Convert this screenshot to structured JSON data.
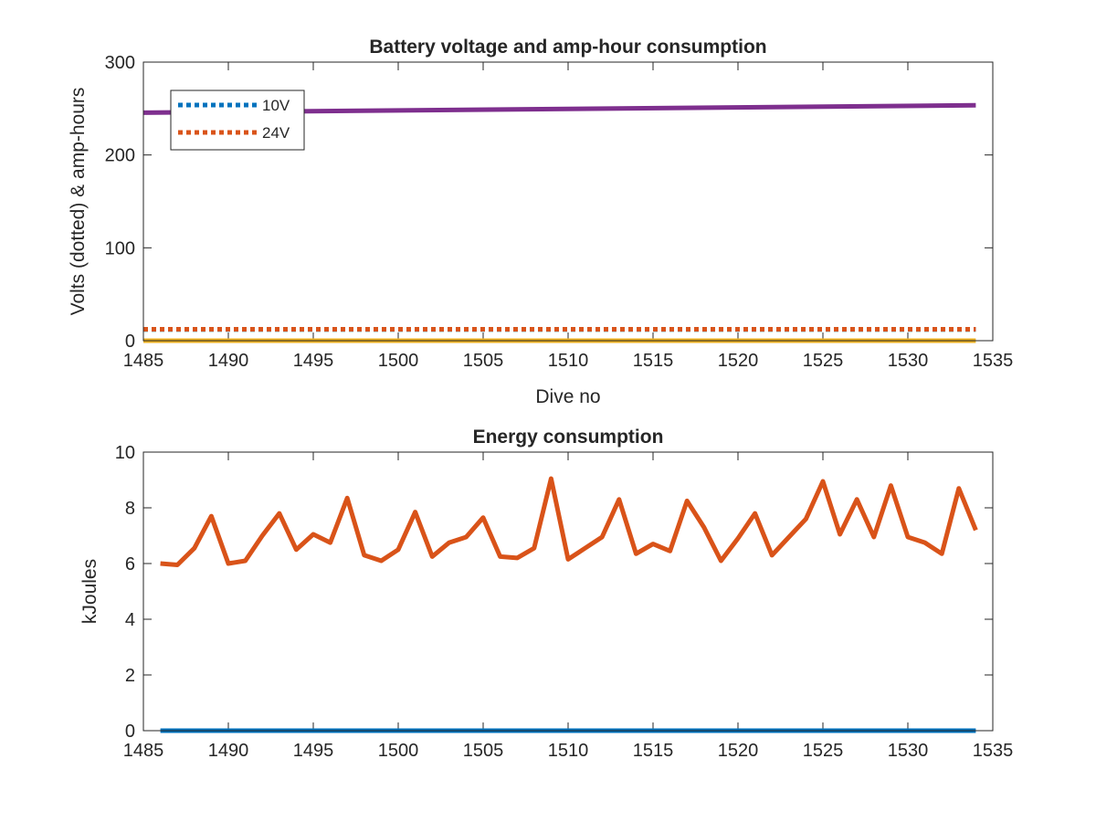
{
  "chart_data": [
    {
      "type": "line",
      "title": "Battery voltage and amp-hour consumption",
      "xlabel": "Dive no",
      "ylabel": "Volts (dotted) & amp-hours",
      "xlim": [
        1485,
        1535
      ],
      "ylim": [
        0,
        300
      ],
      "xticks": [
        "1485",
        "1490",
        "1495",
        "1500",
        "1505",
        "1510",
        "1515",
        "1520",
        "1525",
        "1530",
        "1535"
      ],
      "yticks": [
        "0",
        "100",
        "200",
        "300"
      ],
      "legend_position": "top-left",
      "colors": {
        "10V": "#0072BD",
        "24V": "#D95319",
        "amp_hours": "#7E2F8E",
        "amp_hours_2": "#EDB120"
      },
      "series": [
        {
          "name": "10V",
          "style": "dotted",
          "color": "#0072BD",
          "x": [
            1485,
            1534
          ],
          "y": [
            12,
            12
          ]
        },
        {
          "name": "24V",
          "style": "dotted",
          "color": "#D95319",
          "x": [
            1485,
            1534
          ],
          "y": [
            12.3,
            12.3
          ]
        },
        {
          "style": "solid",
          "color": "#7E2F8E",
          "x": [
            1485,
            1534
          ],
          "y": [
            245.5,
            253.5
          ]
        },
        {
          "style": "solid",
          "color": "#EDB120",
          "x": [
            1485,
            1534
          ],
          "y": [
            0,
            0
          ]
        }
      ]
    },
    {
      "type": "line",
      "title": "Energy consumption",
      "xlabel": "",
      "ylabel": "kJoules",
      "xlim": [
        1485,
        1535
      ],
      "ylim": [
        0,
        10
      ],
      "xticks": [
        "1485",
        "1490",
        "1495",
        "1500",
        "1505",
        "1510",
        "1515",
        "1520",
        "1525",
        "1530",
        "1535"
      ],
      "yticks": [
        "0",
        "2",
        "4",
        "6",
        "8",
        "10"
      ],
      "series": [
        {
          "style": "solid",
          "color": "#D95319",
          "x": [
            1486,
            1487,
            1488,
            1489,
            1490,
            1491,
            1492,
            1493,
            1494,
            1495,
            1496,
            1497,
            1498,
            1499,
            1500,
            1501,
            1502,
            1503,
            1504,
            1505,
            1506,
            1507,
            1508,
            1509,
            1510,
            1511,
            1512,
            1513,
            1514,
            1515,
            1516,
            1517,
            1518,
            1519,
            1520,
            1521,
            1522,
            1523,
            1524,
            1525,
            1526,
            1527,
            1528,
            1529,
            1530,
            1531,
            1532,
            1533,
            1534
          ],
          "y": [
            6.0,
            5.95,
            6.55,
            7.7,
            6.0,
            6.1,
            7.0,
            7.8,
            6.5,
            7.05,
            6.75,
            8.35,
            6.3,
            6.1,
            6.5,
            7.85,
            6.25,
            6.75,
            6.95,
            7.65,
            6.25,
            6.2,
            6.55,
            9.05,
            6.15,
            6.55,
            6.95,
            8.3,
            6.35,
            6.7,
            6.45,
            8.25,
            7.3,
            6.1,
            6.9,
            7.8,
            6.3,
            6.95,
            7.6,
            8.95,
            7.05,
            8.3,
            6.95,
            8.8,
            6.95,
            6.75,
            6.35,
            8.7,
            7.2
          ]
        },
        {
          "style": "solid",
          "color": "#0072BD",
          "x": [
            1486,
            1534
          ],
          "y": [
            0,
            0
          ]
        }
      ]
    }
  ]
}
